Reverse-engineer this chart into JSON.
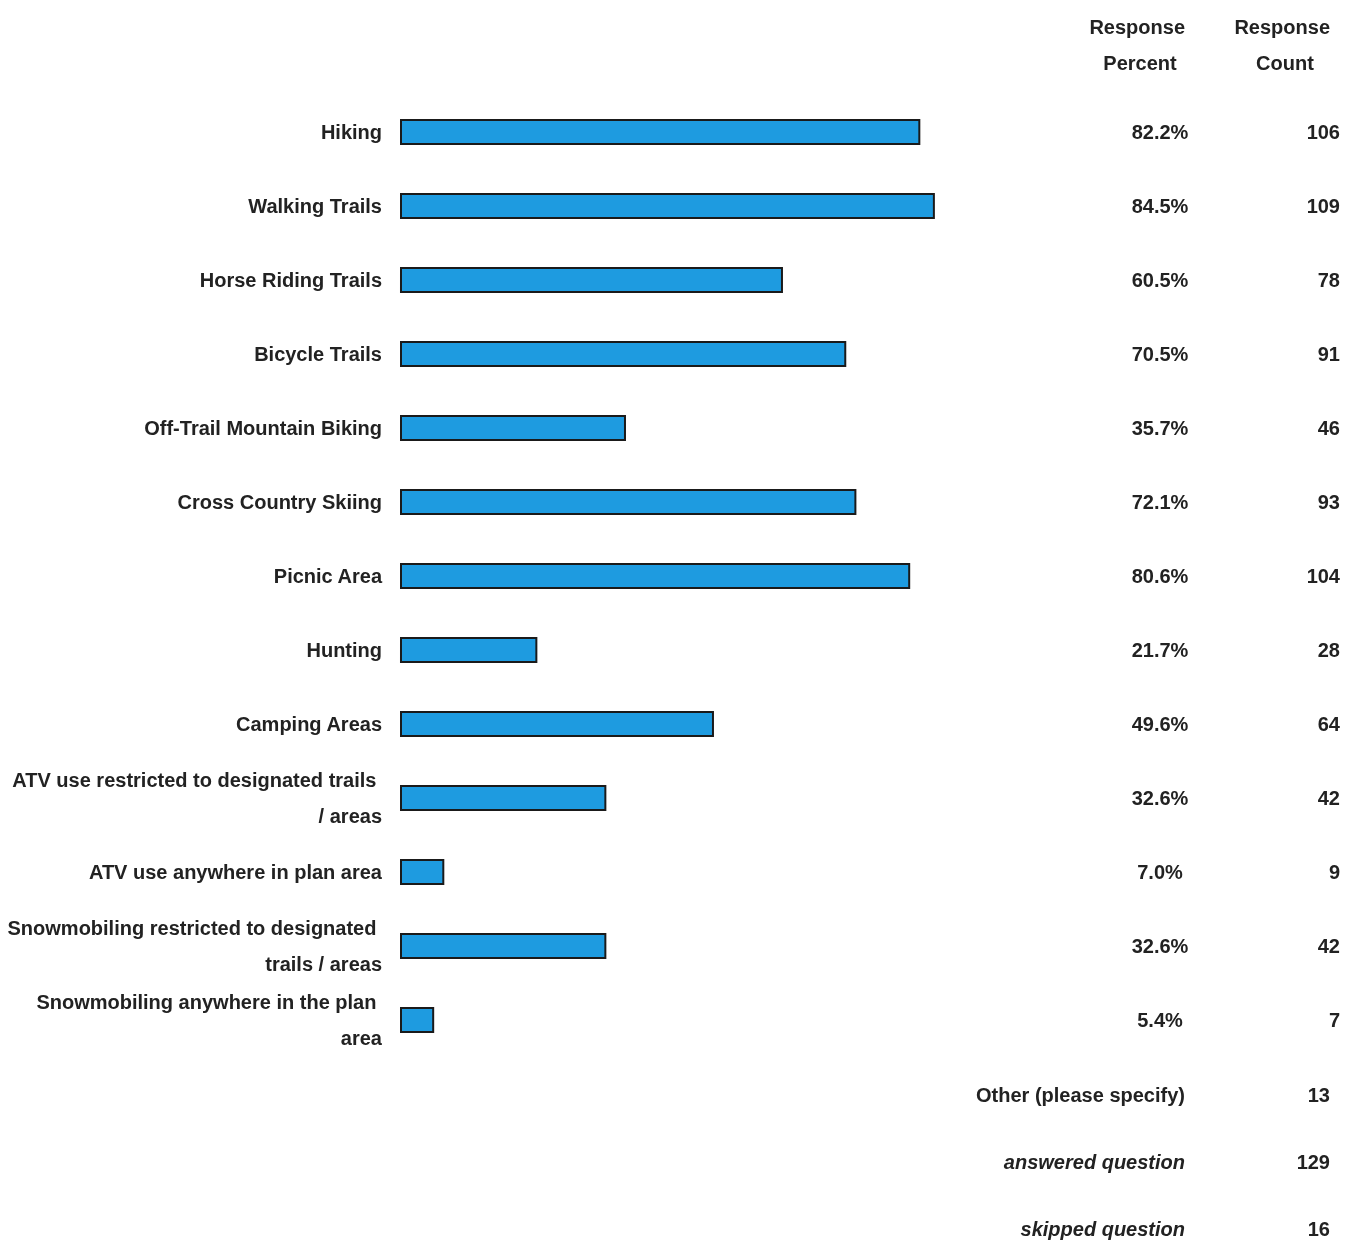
{
  "chart_data": {
    "type": "bar",
    "orientation": "horizontal",
    "categories": [
      "Hiking",
      "Walking Trails",
      "Horse Riding Trails",
      "Bicycle Trails",
      "Off-Trail Mountain Biking",
      "Cross Country Skiing",
      "Picnic Area",
      "Hunting",
      "Camping Areas",
      "ATV use restricted to designated trails / areas",
      "ATV use anywhere in plan area",
      "Snowmobiling restricted to designated trails / areas",
      "Snowmobiling anywhere in the plan area"
    ],
    "values": [
      82.2,
      84.5,
      60.5,
      70.5,
      35.7,
      72.1,
      80.6,
      21.7,
      49.6,
      32.6,
      7.0,
      32.6,
      5.4
    ],
    "value_labels": [
      "82.2%",
      "84.5%",
      "60.5%",
      "70.5%",
      "35.7%",
      "72.1%",
      "80.6%",
      "21.7%",
      "49.6%",
      "32.6%",
      "7.0%",
      "32.6%",
      "5.4%"
    ],
    "color": "#1e9be0",
    "tick_labels": "y",
    "grid": false,
    "annotations": [
      "Response Percent",
      "Response Count",
      "106",
      "109",
      "78",
      "91",
      "46",
      "93",
      "104",
      "28",
      "64",
      "42",
      "9",
      "42",
      "7",
      "Other (please specify)",
      "13",
      "answered question",
      "129",
      "skipped question",
      "16"
    ]
  }
}
